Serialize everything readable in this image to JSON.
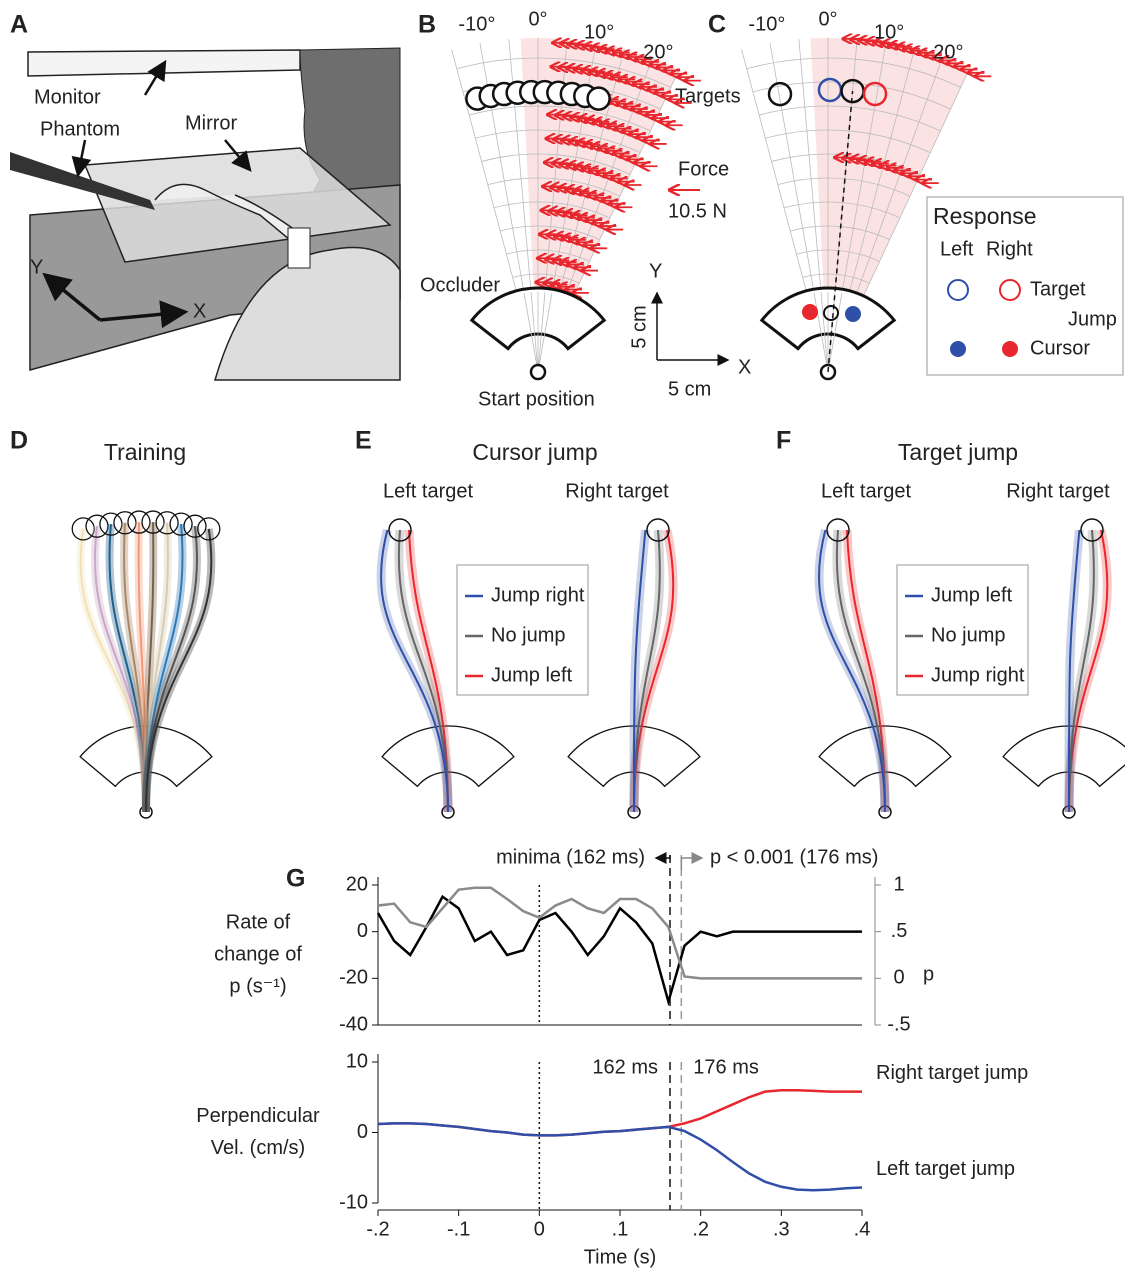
{
  "panels": {
    "A": {
      "label": "A",
      "monitor": "Monitor",
      "phantom": "Phantom",
      "mirror": "Mirror",
      "y": "Y",
      "x": "X"
    },
    "B": {
      "label": "B",
      "angles": [
        "-10°",
        "0°",
        "10°",
        "20°"
      ],
      "targets": "Targets",
      "force": "Force",
      "force_value": "10.5 N",
      "occluder": "Occluder",
      "start": "Start position",
      "scale_y": "Y",
      "scale_x": "X",
      "scale_y_len": "5 cm",
      "scale_x_len": "5 cm"
    },
    "C": {
      "label": "C",
      "angles": [
        "-10°",
        "0°",
        "10°",
        "20°"
      ],
      "legend": {
        "title": "Response",
        "left": "Left",
        "right": "Right",
        "target": "Target",
        "jump": "Jump",
        "cursor": "Cursor"
      }
    },
    "D": {
      "label": "D",
      "title": "Training"
    },
    "E": {
      "label": "E",
      "title": "Cursor jump",
      "left": "Left target",
      "right": "Right target",
      "legend": [
        "Jump right",
        "No jump",
        "Jump left"
      ]
    },
    "F": {
      "label": "F",
      "title": "Target jump",
      "left": "Left target",
      "right": "Right target",
      "legend": [
        "Jump left",
        "No jump",
        "Jump right"
      ]
    },
    "G": {
      "label": "G"
    }
  },
  "chart_data": [
    {
      "type": "line",
      "ylabel": [
        "Rate of",
        "change of",
        "p (s⁻¹)"
      ],
      "y2label": "p",
      "x": [
        -0.2,
        -0.18,
        -0.16,
        -0.14,
        -0.12,
        -0.1,
        -0.08,
        -0.06,
        -0.04,
        -0.02,
        0,
        0.02,
        0.04,
        0.06,
        0.08,
        0.1,
        0.12,
        0.14,
        0.16,
        0.18,
        0.2,
        0.22,
        0.24,
        0.26,
        0.28,
        0.3,
        0.32,
        0.34,
        0.36,
        0.38,
        0.4
      ],
      "xlim": [
        -0.2,
        0.4
      ],
      "ylim": [
        -40,
        20
      ],
      "yticks": [
        -40,
        -20,
        0,
        20
      ],
      "y2lim": [
        -0.5,
        1
      ],
      "y2ticks": [
        {
          "value": -0.5,
          "label": "-.5"
        },
        0,
        {
          "value": 0.5,
          "label": ".5"
        },
        1
      ],
      "vlines": [
        0,
        0.162,
        0.176
      ],
      "annotations": [
        "minima (162 ms)",
        "p < 0.001 (176 ms)"
      ],
      "series": [
        {
          "color": "#000000",
          "values": [
            8,
            -4,
            -10,
            2,
            15,
            10,
            -4,
            0,
            -10,
            -8,
            5,
            8,
            0,
            -10,
            -2,
            10,
            4,
            -5,
            -30,
            -6,
            0,
            -2,
            0,
            0,
            0,
            0,
            0,
            0,
            0,
            0,
            0
          ]
        },
        {
          "color": "#8a8a8a",
          "axis": "y2",
          "values": [
            0.78,
            0.8,
            0.6,
            0.55,
            0.75,
            0.95,
            0.97,
            0.97,
            0.85,
            0.72,
            0.65,
            0.78,
            0.85,
            0.75,
            0.7,
            0.85,
            0.85,
            0.75,
            0.55,
            0.02,
            0,
            0,
            0,
            0,
            0,
            0,
            0,
            0,
            0,
            0,
            0
          ]
        }
      ]
    },
    {
      "type": "line",
      "xlabel": "Time (s)",
      "ylabel": [
        "Perpendicular",
        "Vel. (cm/s)"
      ],
      "x": [
        -0.2,
        -0.18,
        -0.16,
        -0.14,
        -0.12,
        -0.1,
        -0.08,
        -0.06,
        -0.04,
        -0.02,
        0,
        0.02,
        0.04,
        0.06,
        0.08,
        0.1,
        0.12,
        0.14,
        0.16,
        0.18,
        0.2,
        0.22,
        0.24,
        0.26,
        0.28,
        0.3,
        0.32,
        0.34,
        0.36,
        0.38,
        0.4
      ],
      "xlim": [
        -0.2,
        0.4
      ],
      "xticks": [
        {
          "value": -0.2,
          "label": "-.2"
        },
        {
          "value": -0.1,
          "label": "-.1"
        },
        0,
        {
          "value": 0.1,
          "label": ".1"
        },
        {
          "value": 0.2,
          "label": ".2"
        },
        {
          "value": 0.3,
          "label": ".3"
        },
        {
          "value": 0.4,
          "label": ".4"
        }
      ],
      "ylim": [
        -10,
        10
      ],
      "yticks": [
        -10,
        0,
        10
      ],
      "vlines": [
        0,
        0.162,
        0.176
      ],
      "annotations": [
        "162 ms",
        "176 ms"
      ],
      "series": [
        {
          "name": "Right target jump",
          "color": "#e8262d",
          "values": [
            1.2,
            1.3,
            1.3,
            1.2,
            1,
            0.8,
            0.5,
            0.2,
            0,
            -0.3,
            -0.4,
            -0.4,
            -0.3,
            -0.1,
            0.1,
            0.2,
            0.4,
            0.6,
            0.8,
            1.3,
            2,
            3,
            4,
            5,
            5.8,
            6,
            6,
            5.9,
            5.8,
            5.8,
            5.8
          ]
        },
        {
          "name": "Left target jump",
          "color": "#2f4fa8",
          "values": [
            1.2,
            1.3,
            1.3,
            1.2,
            1,
            0.8,
            0.5,
            0.2,
            0,
            -0.3,
            -0.4,
            -0.4,
            -0.3,
            -0.1,
            0.1,
            0.2,
            0.4,
            0.6,
            0.8,
            0.2,
            -1,
            -2.5,
            -4.2,
            -5.8,
            -7,
            -7.7,
            -8.1,
            -8.2,
            -8.1,
            -7.9,
            -7.8
          ]
        }
      ]
    }
  ]
}
